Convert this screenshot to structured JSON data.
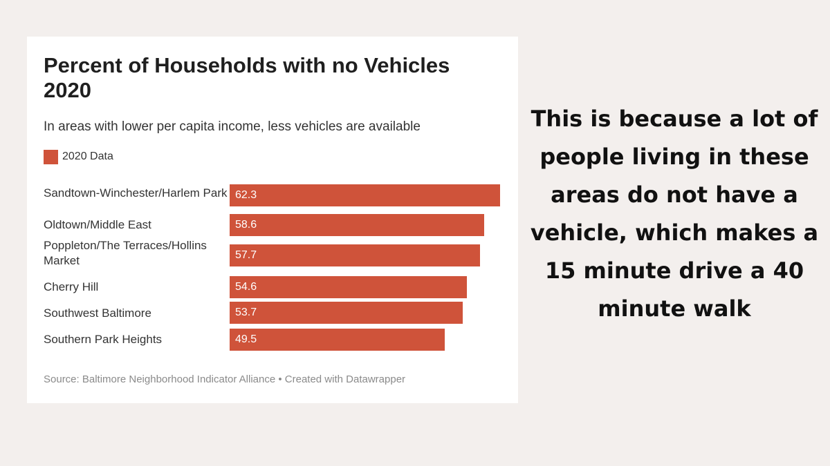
{
  "card": {
    "title": "Percent of Households with no Vehicles 2020",
    "subtitle": "In areas with lower per capita income, less vehicles are available",
    "source": "Source: Baltimore Neighborhood Indicator Alliance • Created with Datawrapper"
  },
  "chart_data": {
    "type": "bar",
    "orientation": "horizontal",
    "title": "Percent of Households with no Vehicles 2020",
    "subtitle": "In areas with lower per capita income, less vehicles are available",
    "legend": [
      "2020 Data"
    ],
    "legend_placement": "top-left",
    "bar_color": "#cf533a",
    "categories": [
      "Sandtown-Winchester/Harlem Park",
      "Oldtown/Middle East",
      "Poppleton/The Terraces/Hollins Market",
      "Cherry Hill",
      "Southwest Baltimore",
      "Southern Park Heights"
    ],
    "series": [
      {
        "name": "2020 Data",
        "values": [
          62.3,
          58.6,
          57.7,
          54.6,
          53.7,
          49.5
        ]
      }
    ],
    "value_labels": [
      "62.3",
      "58.6",
      "57.7",
      "54.6",
      "53.7",
      "49.5"
    ],
    "xlim": [
      0,
      62.3
    ],
    "grid": false
  },
  "side_text": "This is because a lot of people living in these areas do not have a vehicle, which makes a 15 minute drive a 40 minute walk"
}
